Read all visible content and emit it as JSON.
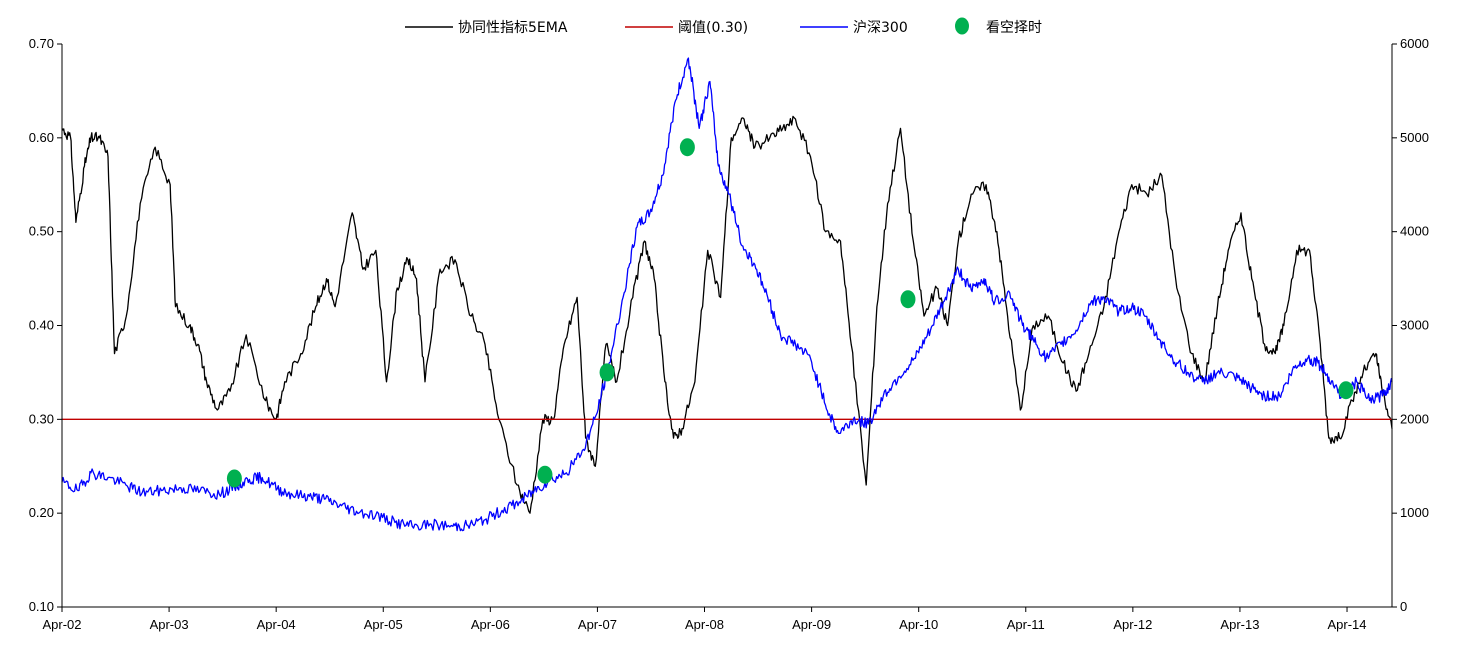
{
  "chart_data": {
    "type": "line",
    "title": "",
    "xlabel": "",
    "ylabel_left": "",
    "ylabel_right": "",
    "x_ticks": [
      "Apr-02",
      "Apr-03",
      "Apr-04",
      "Apr-05",
      "Apr-06",
      "Apr-07",
      "Apr-08",
      "Apr-09",
      "Apr-10",
      "Apr-11",
      "Apr-12",
      "Apr-13",
      "Apr-14"
    ],
    "y_left": {
      "min": 0.1,
      "max": 0.7,
      "ticks": [
        "0.10",
        "0.20",
        "0.30",
        "0.40",
        "0.50",
        "0.60",
        "0.70"
      ]
    },
    "y_right": {
      "min": 0,
      "max": 6000,
      "ticks": [
        "0",
        "1000",
        "2000",
        "3000",
        "4000",
        "5000",
        "6000"
      ]
    },
    "x_range": [
      2002.25,
      2014.67
    ],
    "grid": false,
    "legend_position": "top",
    "series": [
      {
        "name": "协同性指标5EMA",
        "axis": "left",
        "color": "#000000",
        "points": [
          [
            2002.25,
            0.61
          ],
          [
            2002.33,
            0.6
          ],
          [
            2002.38,
            0.51
          ],
          [
            2002.46,
            0.57
          ],
          [
            2002.52,
            0.6
          ],
          [
            2002.6,
            0.6
          ],
          [
            2002.68,
            0.58
          ],
          [
            2002.74,
            0.37
          ],
          [
            2002.85,
            0.41
          ],
          [
            2002.98,
            0.53
          ],
          [
            2003.12,
            0.59
          ],
          [
            2003.26,
            0.55
          ],
          [
            2003.31,
            0.42
          ],
          [
            2003.44,
            0.4
          ],
          [
            2003.52,
            0.38
          ],
          [
            2003.6,
            0.34
          ],
          [
            2003.7,
            0.31
          ],
          [
            2003.82,
            0.33
          ],
          [
            2003.97,
            0.39
          ],
          [
            2004.15,
            0.32
          ],
          [
            2004.25,
            0.3
          ],
          [
            2004.33,
            0.34
          ],
          [
            2004.48,
            0.37
          ],
          [
            2004.62,
            0.42
          ],
          [
            2004.72,
            0.45
          ],
          [
            2004.8,
            0.42
          ],
          [
            2004.96,
            0.52
          ],
          [
            2005.06,
            0.46
          ],
          [
            2005.18,
            0.48
          ],
          [
            2005.28,
            0.34
          ],
          [
            2005.38,
            0.44
          ],
          [
            2005.48,
            0.47
          ],
          [
            2005.56,
            0.45
          ],
          [
            2005.64,
            0.34
          ],
          [
            2005.78,
            0.46
          ],
          [
            2005.92,
            0.47
          ],
          [
            2006.07,
            0.41
          ],
          [
            2006.2,
            0.38
          ],
          [
            2006.33,
            0.3
          ],
          [
            2006.5,
            0.23
          ],
          [
            2006.62,
            0.2
          ],
          [
            2006.74,
            0.3
          ],
          [
            2006.84,
            0.3
          ],
          [
            2006.94,
            0.38
          ],
          [
            2007.06,
            0.43
          ],
          [
            2007.14,
            0.28
          ],
          [
            2007.23,
            0.25
          ],
          [
            2007.33,
            0.38
          ],
          [
            2007.43,
            0.34
          ],
          [
            2007.58,
            0.43
          ],
          [
            2007.69,
            0.49
          ],
          [
            2007.78,
            0.45
          ],
          [
            2007.88,
            0.34
          ],
          [
            2007.96,
            0.28
          ],
          [
            2008.04,
            0.29
          ],
          [
            2008.16,
            0.34
          ],
          [
            2008.28,
            0.48
          ],
          [
            2008.4,
            0.43
          ],
          [
            2008.5,
            0.6
          ],
          [
            2008.62,
            0.62
          ],
          [
            2008.72,
            0.59
          ],
          [
            2008.86,
            0.6
          ],
          [
            2008.98,
            0.61
          ],
          [
            2009.1,
            0.62
          ],
          [
            2009.24,
            0.58
          ],
          [
            2009.38,
            0.5
          ],
          [
            2009.52,
            0.49
          ],
          [
            2009.62,
            0.38
          ],
          [
            2009.76,
            0.23
          ],
          [
            2009.86,
            0.42
          ],
          [
            2009.96,
            0.53
          ],
          [
            2010.08,
            0.61
          ],
          [
            2010.2,
            0.49
          ],
          [
            2010.3,
            0.41
          ],
          [
            2010.42,
            0.44
          ],
          [
            2010.52,
            0.4
          ],
          [
            2010.62,
            0.49
          ],
          [
            2010.74,
            0.54
          ],
          [
            2010.88,
            0.55
          ],
          [
            2010.98,
            0.5
          ],
          [
            2011.08,
            0.41
          ],
          [
            2011.2,
            0.31
          ],
          [
            2011.32,
            0.4
          ],
          [
            2011.46,
            0.41
          ],
          [
            2011.6,
            0.36
          ],
          [
            2011.72,
            0.33
          ],
          [
            2011.84,
            0.37
          ],
          [
            2011.98,
            0.42
          ],
          [
            2012.12,
            0.5
          ],
          [
            2012.24,
            0.55
          ],
          [
            2012.38,
            0.54
          ],
          [
            2012.52,
            0.56
          ],
          [
            2012.66,
            0.44
          ],
          [
            2012.8,
            0.37
          ],
          [
            2012.92,
            0.34
          ],
          [
            2013.04,
            0.42
          ],
          [
            2013.14,
            0.48
          ],
          [
            2013.26,
            0.52
          ],
          [
            2013.36,
            0.45
          ],
          [
            2013.48,
            0.38
          ],
          [
            2013.58,
            0.37
          ],
          [
            2013.66,
            0.4
          ],
          [
            2013.78,
            0.48
          ],
          [
            2013.9,
            0.48
          ],
          [
            2014.0,
            0.38
          ],
          [
            2014.08,
            0.28
          ],
          [
            2014.18,
            0.28
          ],
          [
            2014.3,
            0.32
          ],
          [
            2014.4,
            0.35
          ],
          [
            2014.52,
            0.37
          ],
          [
            2014.58,
            0.33
          ],
          [
            2014.67,
            0.29
          ]
        ]
      },
      {
        "name": "阈值(0.30)",
        "axis": "left",
        "color": "#c00000",
        "points": [
          [
            2002.25,
            0.3
          ],
          [
            2014.67,
            0.3
          ]
        ]
      },
      {
        "name": "沪深300",
        "axis": "right",
        "color": "#0000ff",
        "points": [
          [
            2002.25,
            1330
          ],
          [
            2002.4,
            1240
          ],
          [
            2002.52,
            1430
          ],
          [
            2002.68,
            1380
          ],
          [
            2002.86,
            1290
          ],
          [
            2003.0,
            1220
          ],
          [
            2003.18,
            1240
          ],
          [
            2003.36,
            1270
          ],
          [
            2003.54,
            1240
          ],
          [
            2003.72,
            1200
          ],
          [
            2003.86,
            1280
          ],
          [
            2004.0,
            1360
          ],
          [
            2004.12,
            1380
          ],
          [
            2004.26,
            1260
          ],
          [
            2004.4,
            1200
          ],
          [
            2004.56,
            1180
          ],
          [
            2004.7,
            1150
          ],
          [
            2004.86,
            1080
          ],
          [
            2005.0,
            1020
          ],
          [
            2005.18,
            980
          ],
          [
            2005.36,
            900
          ],
          [
            2005.52,
            860
          ],
          [
            2005.7,
            880
          ],
          [
            2005.9,
            860
          ],
          [
            2006.04,
            870
          ],
          [
            2006.2,
            930
          ],
          [
            2006.36,
            1030
          ],
          [
            2006.52,
            1120
          ],
          [
            2006.66,
            1240
          ],
          [
            2006.8,
            1350
          ],
          [
            2006.96,
            1430
          ],
          [
            2007.12,
            1680
          ],
          [
            2007.24,
            2050
          ],
          [
            2007.36,
            2600
          ],
          [
            2007.5,
            3350
          ],
          [
            2007.62,
            4050
          ],
          [
            2007.74,
            4200
          ],
          [
            2007.86,
            4600
          ],
          [
            2007.98,
            5400
          ],
          [
            2008.1,
            5850
          ],
          [
            2008.2,
            5100
          ],
          [
            2008.3,
            5600
          ],
          [
            2008.38,
            4700
          ],
          [
            2008.48,
            4400
          ],
          [
            2008.6,
            3850
          ],
          [
            2008.72,
            3650
          ],
          [
            2008.84,
            3300
          ],
          [
            2008.96,
            2900
          ],
          [
            2009.1,
            2800
          ],
          [
            2009.24,
            2650
          ],
          [
            2009.38,
            2150
          ],
          [
            2009.5,
            1850
          ],
          [
            2009.64,
            2000
          ],
          [
            2009.78,
            1950
          ],
          [
            2009.92,
            2250
          ],
          [
            2010.06,
            2450
          ],
          [
            2010.22,
            2650
          ],
          [
            2010.36,
            2950
          ],
          [
            2010.5,
            3300
          ],
          [
            2010.62,
            3600
          ],
          [
            2010.74,
            3380
          ],
          [
            2010.86,
            3500
          ],
          [
            2010.96,
            3250
          ],
          [
            2011.1,
            3350
          ],
          [
            2011.22,
            3000
          ],
          [
            2011.32,
            2850
          ],
          [
            2011.44,
            2650
          ],
          [
            2011.58,
            2800
          ],
          [
            2011.72,
            2950
          ],
          [
            2011.86,
            3250
          ],
          [
            2011.98,
            3300
          ],
          [
            2012.12,
            3150
          ],
          [
            2012.24,
            3200
          ],
          [
            2012.36,
            3100
          ],
          [
            2012.5,
            2850
          ],
          [
            2012.62,
            2650
          ],
          [
            2012.76,
            2500
          ],
          [
            2012.9,
            2400
          ],
          [
            2013.04,
            2500
          ],
          [
            2013.2,
            2450
          ],
          [
            2013.34,
            2350
          ],
          [
            2013.48,
            2250
          ],
          [
            2013.62,
            2250
          ],
          [
            2013.76,
            2550
          ],
          [
            2013.88,
            2650
          ],
          [
            2013.98,
            2600
          ],
          [
            2014.08,
            2450
          ],
          [
            2014.2,
            2250
          ],
          [
            2014.34,
            2400
          ],
          [
            2014.46,
            2200
          ],
          [
            2014.58,
            2250
          ],
          [
            2014.67,
            2400
          ]
        ]
      },
      {
        "name": "看空择时",
        "axis": "left",
        "color": "#00b050",
        "type": "scatter",
        "points": [
          [
            2003.86,
            0.237
          ],
          [
            2006.76,
            0.241
          ],
          [
            2007.34,
            0.35
          ],
          [
            2008.09,
            0.59
          ],
          [
            2010.15,
            0.428
          ],
          [
            2014.24,
            0.331
          ]
        ]
      }
    ]
  }
}
